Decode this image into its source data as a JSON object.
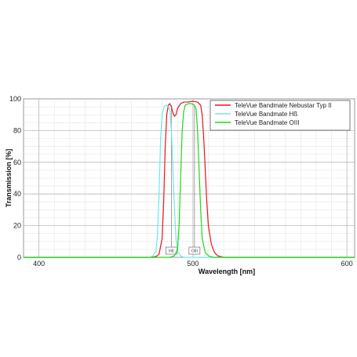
{
  "chart_data": {
    "type": "line",
    "title": "",
    "xlabel": "Wavelength [nm]",
    "ylabel": "Transmission [%]",
    "xlim": [
      390,
      605
    ],
    "ylim": [
      0,
      100
    ],
    "x_ticks": [
      400,
      500,
      600
    ],
    "y_ticks": [
      0,
      20,
      40,
      60,
      80,
      100
    ],
    "grid": true,
    "legend_position": "top-right",
    "series": [
      {
        "name": "TeleVue Bandmate Nebustar Typ II",
        "color": "#e8141b",
        "points": [
          [
            390,
            0
          ],
          [
            472,
            0
          ],
          [
            476,
            0.5
          ],
          [
            478,
            2
          ],
          [
            480,
            12
          ],
          [
            481,
            35
          ],
          [
            482,
            70
          ],
          [
            483,
            90
          ],
          [
            484,
            96
          ],
          [
            485,
            97
          ],
          [
            486,
            95
          ],
          [
            487,
            91
          ],
          [
            488,
            89
          ],
          [
            489,
            90
          ],
          [
            490,
            94
          ],
          [
            492,
            97
          ],
          [
            494,
            98
          ],
          [
            497,
            98
          ],
          [
            500,
            98.5
          ],
          [
            503,
            98
          ],
          [
            505,
            96
          ],
          [
            506,
            90
          ],
          [
            507,
            75
          ],
          [
            508,
            55
          ],
          [
            509,
            35
          ],
          [
            510,
            20
          ],
          [
            512,
            8
          ],
          [
            514,
            3
          ],
          [
            516,
            1
          ],
          [
            520,
            0
          ],
          [
            605,
            0
          ]
        ]
      },
      {
        "name": "TeleVue Bandmate Hß",
        "color": "#6fe8e8",
        "points": [
          [
            390,
            0
          ],
          [
            472,
            0
          ],
          [
            474,
            1
          ],
          [
            476,
            4
          ],
          [
            477,
            15
          ],
          [
            478,
            40
          ],
          [
            479,
            75
          ],
          [
            480,
            90
          ],
          [
            481,
            94
          ],
          [
            482,
            96
          ],
          [
            483,
            96
          ],
          [
            484,
            95
          ],
          [
            485,
            93
          ],
          [
            486,
            80
          ],
          [
            487,
            55
          ],
          [
            488,
            30
          ],
          [
            489,
            12
          ],
          [
            490,
            4
          ],
          [
            492,
            1
          ],
          [
            494,
            0
          ],
          [
            605,
            0
          ]
        ]
      },
      {
        "name": "TeleVue Bandmate OIII",
        "color": "#1bd91b",
        "points": [
          [
            390,
            0
          ],
          [
            485,
            0
          ],
          [
            488,
            1
          ],
          [
            490,
            5
          ],
          [
            491,
            20
          ],
          [
            492,
            50
          ],
          [
            493,
            80
          ],
          [
            494,
            92
          ],
          [
            495,
            96
          ],
          [
            497,
            97
          ],
          [
            499,
            97
          ],
          [
            501,
            96
          ],
          [
            502,
            94
          ],
          [
            503,
            80
          ],
          [
            504,
            55
          ],
          [
            505,
            30
          ],
          [
            506,
            12
          ],
          [
            508,
            3
          ],
          [
            510,
            1
          ],
          [
            513,
            0
          ],
          [
            605,
            0
          ]
        ]
      }
    ],
    "markers": [
      {
        "label": "Hß",
        "x": 486
      },
      {
        "label": "OIII",
        "x": 501
      }
    ]
  }
}
